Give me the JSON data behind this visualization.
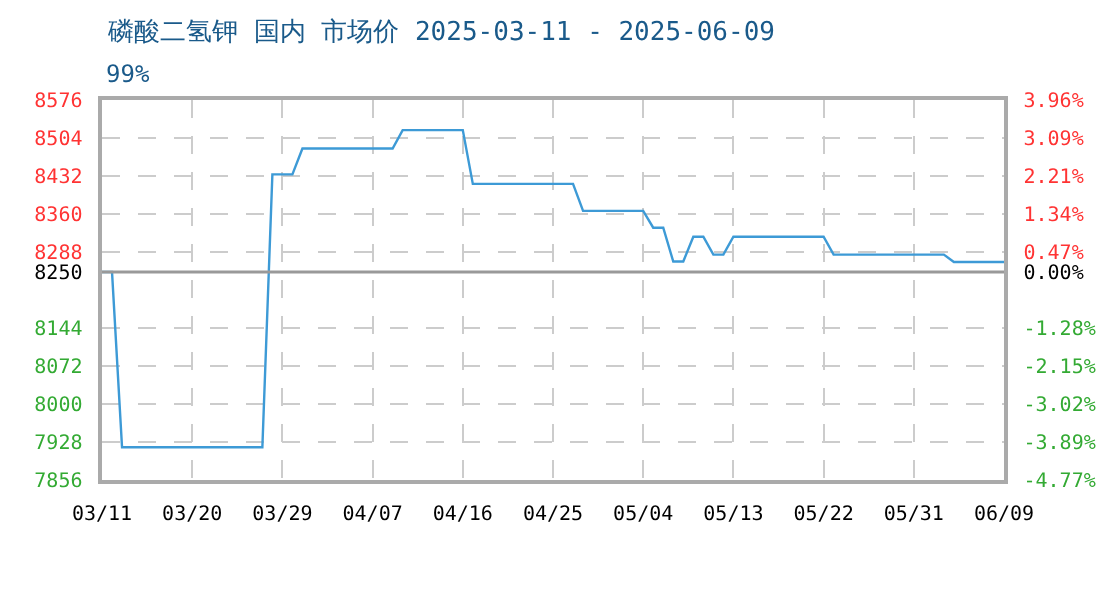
{
  "chart_data": {
    "type": "line",
    "title": "磷酸二氢钾 国内 市场价 2025-03-11 - 2025-06-09",
    "subtitle": "99%",
    "x": [
      "2025-03-11",
      "2025-03-12",
      "2025-03-13",
      "2025-03-27",
      "2025-03-28",
      "2025-03-30",
      "2025-03-31",
      "2025-04-09",
      "2025-04-10",
      "2025-04-16",
      "2025-04-17",
      "2025-04-27",
      "2025-04-28",
      "2025-05-04",
      "2025-05-05",
      "2025-05-06",
      "2025-05-07",
      "2025-05-08",
      "2025-05-09",
      "2025-05-10",
      "2025-05-11",
      "2025-05-12",
      "2025-05-13",
      "2025-05-22",
      "2025-05-23",
      "2025-06-03",
      "2025-06-04",
      "2025-06-09"
    ],
    "series": [
      {
        "color": "#3d9ad6",
        "values": [
          8250,
          8250,
          7918,
          7918,
          8435,
          8435,
          8484,
          8484,
          8519,
          8519,
          8417,
          8417,
          8366,
          8366,
          8334,
          8334,
          8270,
          8270,
          8317,
          8317,
          8283,
          8283,
          8317,
          8317,
          8283,
          8283,
          8269,
          8269
        ]
      }
    ],
    "xlim": [
      "2025-03-11",
      "2025-06-09"
    ],
    "xticks": [
      {
        "value": "2025-03-11",
        "label": "03/11"
      },
      {
        "value": "2025-03-20",
        "label": "03/20"
      },
      {
        "value": "2025-03-29",
        "label": "03/29"
      },
      {
        "value": "2025-04-07",
        "label": "04/07"
      },
      {
        "value": "2025-04-16",
        "label": "04/16"
      },
      {
        "value": "2025-04-25",
        "label": "04/25"
      },
      {
        "value": "2025-05-04",
        "label": "05/04"
      },
      {
        "value": "2025-05-13",
        "label": "05/13"
      },
      {
        "value": "2025-05-22",
        "label": "05/22"
      },
      {
        "value": "2025-05-31",
        "label": "05/31"
      },
      {
        "value": "2025-06-09",
        "label": "06/09"
      }
    ],
    "ylim": [
      7856,
      8576
    ],
    "yticks": [
      8576,
      8504,
      8432,
      8360,
      8288,
      8250,
      8144,
      8072,
      8000,
      7928,
      7856
    ],
    "y2lim": [
      -4.77,
      3.96
    ],
    "y2ticks": [
      {
        "value": 3.96,
        "label": "3.96%"
      },
      {
        "value": 3.09,
        "label": "3.09%"
      },
      {
        "value": 2.21,
        "label": "2.21%"
      },
      {
        "value": 1.34,
        "label": "1.34%"
      },
      {
        "value": 0.47,
        "label": "0.47%"
      },
      {
        "value": 0,
        "label": "0.00%"
      },
      {
        "value": -1.28,
        "label": "-1.28%"
      },
      {
        "value": -2.15,
        "label": "-2.15%"
      },
      {
        "value": -3.02,
        "label": "-3.02%"
      },
      {
        "value": -3.89,
        "label": "-3.89%"
      },
      {
        "value": -4.77,
        "label": "-4.77%"
      }
    ],
    "ref_lines": [
      {
        "axis": "y",
        "value": 8250,
        "color": "#999999",
        "line_style": "solid"
      }
    ],
    "grid": true,
    "marker": "none",
    "line_style": "solid"
  }
}
